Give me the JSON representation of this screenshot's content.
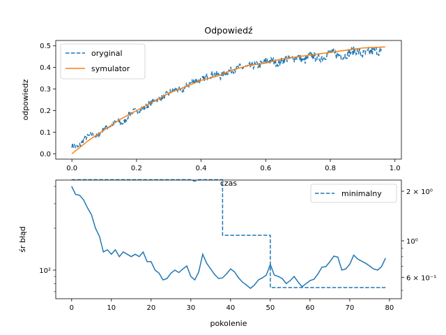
{
  "colors": {
    "series1": "#1f77b4",
    "series2": "#ff7f0e"
  },
  "chart_data": [
    {
      "type": "line",
      "title": "Odpowiedź",
      "xlabel": "czas",
      "ylabel": "odpowiedz",
      "xlim": [
        -0.05,
        1.02
      ],
      "ylim": [
        -0.025,
        0.525
      ],
      "xticks": [
        "0.0",
        "0.2",
        "0.4",
        "0.6",
        "0.8",
        "1.0"
      ],
      "yticks": [
        "0.0",
        "0.1",
        "0.2",
        "0.3",
        "0.4",
        "0.5"
      ],
      "legend_position": "top-left",
      "series": [
        {
          "name": "oryginal",
          "style": "dashed",
          "x": [
            0.0,
            0.02,
            0.04,
            0.06,
            0.08,
            0.1,
            0.12,
            0.14,
            0.16,
            0.18,
            0.2,
            0.22,
            0.24,
            0.26,
            0.28,
            0.3,
            0.32,
            0.34,
            0.36,
            0.38,
            0.4,
            0.42,
            0.44,
            0.46,
            0.48,
            0.5,
            0.52,
            0.54,
            0.56,
            0.58,
            0.6,
            0.62,
            0.64,
            0.66,
            0.68,
            0.7,
            0.72,
            0.74,
            0.76,
            0.78,
            0.8,
            0.82,
            0.84,
            0.86,
            0.88,
            0.9,
            0.92,
            0.94,
            0.96
          ],
          "y": [
            0.04,
            0.03,
            0.07,
            0.09,
            0.08,
            0.12,
            0.13,
            0.15,
            0.14,
            0.19,
            0.2,
            0.21,
            0.23,
            0.25,
            0.26,
            0.28,
            0.3,
            0.29,
            0.32,
            0.34,
            0.34,
            0.36,
            0.37,
            0.36,
            0.38,
            0.39,
            0.4,
            0.4,
            0.41,
            0.41,
            0.43,
            0.43,
            0.42,
            0.44,
            0.44,
            0.45,
            0.43,
            0.46,
            0.44,
            0.45,
            0.47,
            0.46,
            0.45,
            0.47,
            0.48,
            0.46,
            0.47,
            0.48,
            0.47
          ]
        },
        {
          "name": "symulator",
          "style": "solid",
          "x": [
            0.0,
            0.05,
            0.1,
            0.15,
            0.2,
            0.25,
            0.3,
            0.35,
            0.4,
            0.45,
            0.5,
            0.55,
            0.6,
            0.65,
            0.7,
            0.75,
            0.8,
            0.85,
            0.9,
            0.97
          ],
          "y": [
            0.0,
            0.06,
            0.11,
            0.16,
            0.2,
            0.24,
            0.28,
            0.31,
            0.34,
            0.36,
            0.39,
            0.41,
            0.42,
            0.44,
            0.45,
            0.46,
            0.47,
            0.48,
            0.49,
            0.495
          ]
        }
      ]
    },
    {
      "type": "line",
      "title": "",
      "xlabel": "pokolenie",
      "ylabel": "śr błąd",
      "xlim": [
        -4,
        83
      ],
      "xticks": [
        "0",
        "10",
        "20",
        "30",
        "40",
        "50",
        "60",
        "70",
        "80"
      ],
      "yticks_left": [
        "10²"
      ],
      "yticks_right": [
        "2 × 10⁰",
        "10⁰",
        "6 × 10⁻¹"
      ],
      "y_scale": "log",
      "legend_position": "top-right",
      "series": [
        {
          "name": "",
          "axis": "left",
          "style": "solid",
          "x": [
            0,
            1,
            2,
            3,
            4,
            5,
            6,
            7,
            8,
            9,
            10,
            11,
            12,
            13,
            14,
            15,
            16,
            17,
            18,
            19,
            20,
            21,
            22,
            23,
            24,
            25,
            26,
            27,
            28,
            29,
            30,
            31,
            32,
            33,
            34,
            35,
            36,
            37,
            38,
            39,
            40,
            41,
            42,
            43,
            44,
            45,
            46,
            47,
            48,
            49,
            50,
            51,
            52,
            53,
            54,
            55,
            56,
            57,
            58,
            59,
            60,
            61,
            62,
            63,
            64,
            65,
            66,
            67,
            68,
            69,
            70,
            71,
            72,
            73,
            74,
            75,
            76,
            77,
            78,
            79
          ],
          "y": [
            400,
            350,
            345,
            320,
            280,
            250,
            200,
            175,
            135,
            140,
            130,
            140,
            125,
            135,
            130,
            125,
            130,
            125,
            135,
            115,
            115,
            100,
            95,
            85,
            87,
            95,
            100,
            96,
            102,
            107,
            90,
            85,
            97,
            130,
            112,
            102,
            93,
            87,
            88,
            94,
            102,
            97,
            88,
            82,
            78,
            74,
            78,
            85,
            88,
            92,
            110,
            92,
            90,
            87,
            80,
            84,
            90,
            82,
            76,
            80,
            84,
            86,
            94,
            105,
            106,
            115,
            126,
            124,
            100,
            102,
            110,
            128,
            120,
            116,
            112,
            107,
            102,
            100,
            106,
            122
          ]
        },
        {
          "name": "minimalny",
          "axis": "right",
          "style": "dashed",
          "x": [
            0,
            1,
            5,
            10,
            15,
            20,
            25,
            30,
            31,
            32,
            33,
            34,
            35,
            36,
            37,
            38,
            44,
            45,
            46,
            48,
            49,
            50,
            55,
            60,
            65,
            70,
            75,
            78,
            79
          ],
          "y": [
            2.35,
            2.35,
            2.35,
            2.35,
            2.35,
            2.35,
            2.35,
            2.35,
            2.3,
            2.35,
            2.35,
            2.35,
            2.35,
            2.35,
            2.35,
            1.08,
            1.08,
            1.08,
            1.08,
            1.08,
            1.08,
            0.52,
            0.52,
            0.52,
            0.52,
            0.52,
            0.52,
            0.52,
            0.52
          ]
        }
      ]
    }
  ]
}
